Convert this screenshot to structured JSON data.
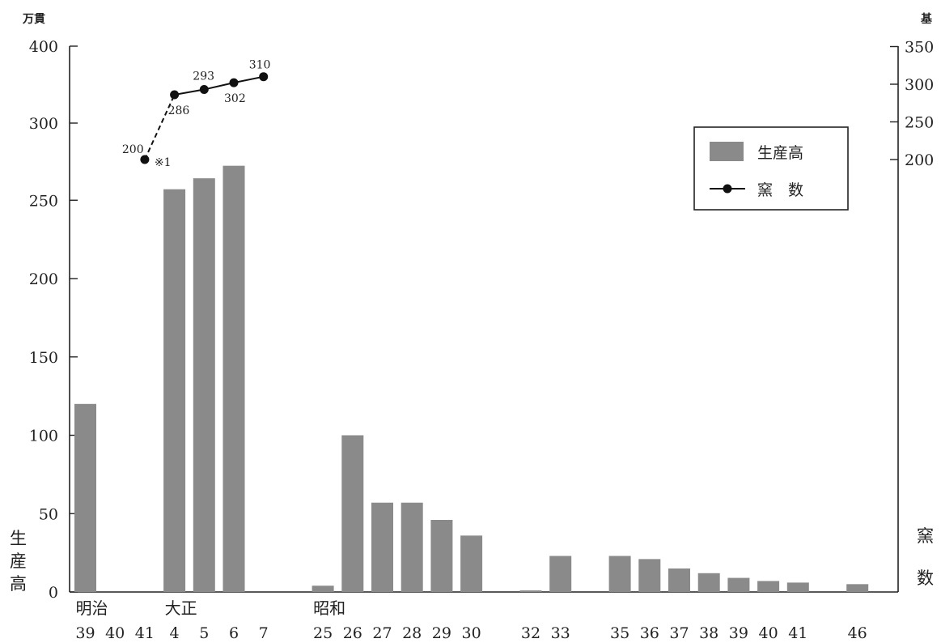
{
  "chart_data": {
    "type": "bar",
    "title": "",
    "y_left_unit": "万貫",
    "y_right_unit": "基",
    "y_left_label": "生産高",
    "y_right_label": "窯数",
    "y_left_ticks": [
      0,
      50,
      100,
      150,
      200,
      250,
      300,
      400
    ],
    "y_right_ticks": [
      200,
      250,
      300,
      350
    ],
    "ylim_left": [
      0,
      350
    ],
    "ylim_right": [
      0,
      350
    ],
    "era_labels": [
      {
        "text": "明治",
        "at_category": 0
      },
      {
        "text": "大正",
        "at_category": 3
      },
      {
        "text": "昭和",
        "at_category": 8
      }
    ],
    "categories": [
      "39",
      "40",
      "41",
      "4",
      "5",
      "6",
      "7",
      "",
      "25",
      "26",
      "27",
      "28",
      "29",
      "30",
      "",
      "32",
      "33",
      "",
      "35",
      "36",
      "37",
      "38",
      "39",
      "40",
      "41",
      "",
      "46"
    ],
    "series": [
      {
        "name": "生産高",
        "kind": "bar",
        "color": "#8a8a8a",
        "values": [
          120,
          0,
          0,
          257,
          264,
          272,
          0,
          0,
          4,
          100,
          57,
          57,
          46,
          36,
          0,
          1,
          23,
          0,
          23,
          21,
          15,
          12,
          9,
          7,
          6,
          0,
          5
        ]
      },
      {
        "name": "窯数",
        "kind": "line",
        "color": "#111111",
        "points": [
          {
            "category": "41",
            "value": 200,
            "label": "200",
            "note": "※1"
          },
          {
            "category": "4",
            "value": 286,
            "label": "286"
          },
          {
            "category": "5",
            "value": 293,
            "label": "293"
          },
          {
            "category": "6",
            "value": 302,
            "label": "302"
          },
          {
            "category": "7",
            "value": 310,
            "label": "310"
          }
        ]
      }
    ],
    "legend": {
      "placement": "top-right",
      "items": [
        "生産高",
        "窯　数"
      ]
    },
    "grid": false
  }
}
